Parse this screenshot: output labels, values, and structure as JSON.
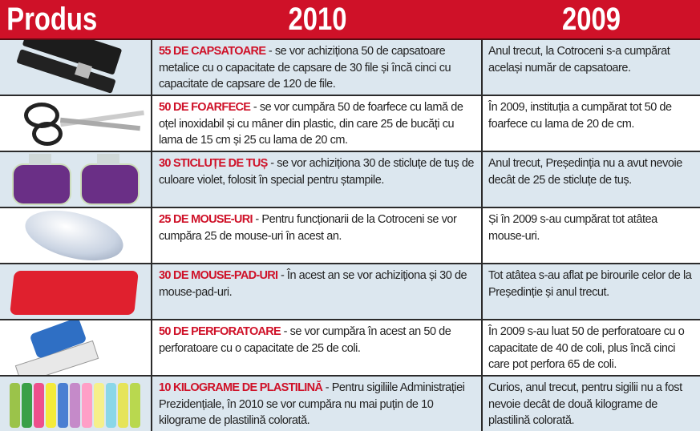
{
  "header": {
    "product": "Produs",
    "year_current": "2010",
    "year_previous": "2009"
  },
  "colors": {
    "accent": "#cf1128",
    "row_alt": "#dce7ef"
  },
  "rows": [
    {
      "icon": "stapler-icon",
      "highlight": "55 DE CAPSATOARE",
      "text_2010": " - se vor achiziționa 50 de capsatoare metalice cu o capacitate de capsare de 30 file și încă cinci cu capacitate de capsare de 120 de file.",
      "text_2009": "Anul trecut, la Cotroceni s-a cumpărat același număr de capsatoare."
    },
    {
      "icon": "scissors-icon",
      "highlight": "50 DE FOARFECE",
      "text_2010": " - se vor cumpăra 50 de foarfece cu lamă de oțel inoxidabil și cu mâner din plastic, din care 25 de bucăți cu lama de 15 cm și 25 cu lama de 20 cm.",
      "text_2009": "În 2009, instituția a cumpărat tot 50 de foarfece cu lama de 20 de cm."
    },
    {
      "icon": "ink-bottle-icon",
      "highlight": "30 STICLUȚE DE TUȘ",
      "text_2010": " - se vor achiziționa 30 de sticluțe de tuș de culoare violet, folosit în special pentru ștampile.",
      "text_2009": "Anul trecut, Președinția nu a avut nevoie decât de 25 de sticluțe de tuș."
    },
    {
      "icon": "mouse-icon",
      "highlight": "25 DE MOUSE-URI",
      "text_2010": " - Pentru funcționarii de la Cotroceni se vor cumpăra 25 de mouse-uri în acest an.",
      "text_2009": "Și în 2009 s-au cumpărat tot atâtea mouse-uri."
    },
    {
      "icon": "mousepad-icon",
      "highlight": "30 DE MOUSE-PAD-URI",
      "text_2010": " - În acest an se vor achiziționa și 30 de mouse-pad-uri.",
      "text_2009": "Tot atâtea s-au aflat pe birourile celor de la Președinție și anul trecut."
    },
    {
      "icon": "hole-punch-icon",
      "highlight": "50 DE PERFORATOARE",
      "text_2010": " - se vor cumpăra în acest an 50 de perforatoare cu o capacitate de 25 de coli.",
      "text_2009": "În 2009 s-au luat 50 de perforatoare cu o capacitate de 40 de coli, plus încă cinci care pot perfora 65 de coli."
    },
    {
      "icon": "plasticine-icon",
      "highlight": "10 KILOGRAME DE PLASTILINĂ",
      "text_2010": " - Pentru sigiliile Administrației Prezidențiale, în 2010 se vor cumpăra nu mai puțin de 10 kilograme de plastilină colorată.",
      "text_2009": "Curios, anul trecut, pentru sigilii nu a fost nevoie decât de două kilograme de plastilină colorată."
    }
  ]
}
